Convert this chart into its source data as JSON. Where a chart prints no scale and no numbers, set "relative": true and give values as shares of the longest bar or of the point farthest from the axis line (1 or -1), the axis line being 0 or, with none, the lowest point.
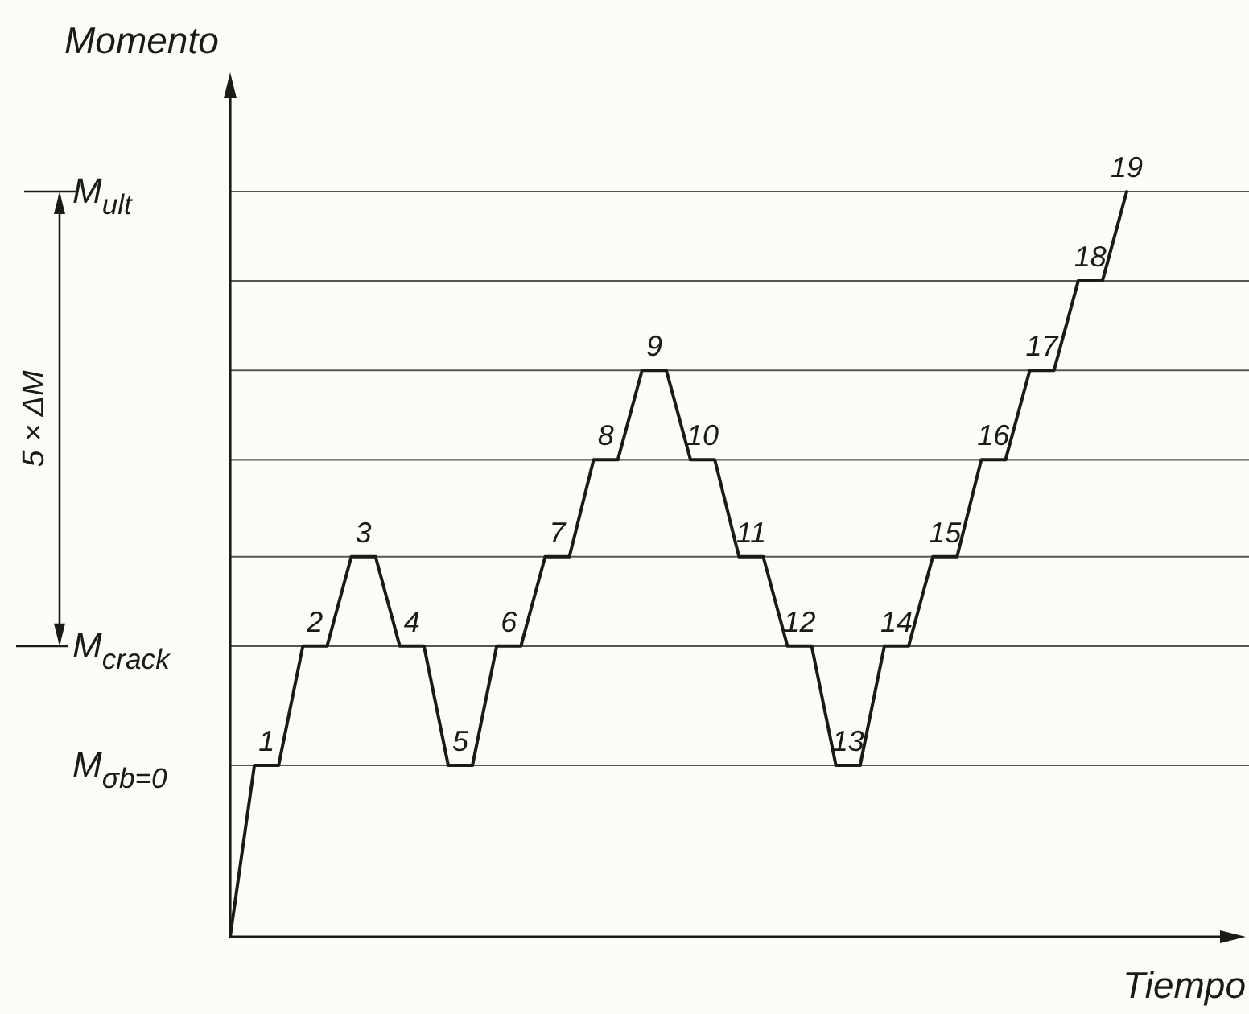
{
  "chart_data": {
    "type": "line",
    "xlabel": "Tiempo",
    "ylabel": "Momento",
    "relative": true,
    "categories": [
      null,
      null,
      null,
      null,
      null,
      null,
      null,
      null,
      null,
      null,
      null,
      null,
      null,
      null,
      null,
      null,
      null,
      null,
      null,
      null,
      null,
      null,
      null,
      null,
      null,
      null,
      null,
      null,
      null,
      null,
      null,
      null,
      null,
      null,
      null,
      null,
      null,
      null
    ],
    "series": [
      {
        "color": "#1a1a1a",
        "values": [
          0,
          0.23,
          0.23,
          0.39,
          0.39,
          0.51,
          0.51,
          0.39,
          0.39,
          0.23,
          0.23,
          0.39,
          0.39,
          0.51,
          0.51,
          0.64,
          0.64,
          0.76,
          0.76,
          0.64,
          0.64,
          0.51,
          0.51,
          0.39,
          0.39,
          0.23,
          0.23,
          0.39,
          0.39,
          0.51,
          0.51,
          0.64,
          0.64,
          0.76,
          0.76,
          0.88,
          0.88,
          1
        ]
      }
    ],
    "ref_lines": [
      {
        "axis": "y",
        "value": 0.23,
        "label": "M$_{σb=0}$"
      },
      {
        "axis": "y",
        "value": 0.39,
        "label": "M$_{crack}$"
      },
      {
        "axis": "y",
        "value": 0.51
      },
      {
        "axis": "y",
        "value": 0.64
      },
      {
        "axis": "y",
        "value": 0.76
      },
      {
        "axis": "y",
        "value": 0.88
      },
      {
        "axis": "y",
        "value": 1,
        "label": "M$_{ult}$"
      }
    ],
    "annotations": [
      "5 × ΔM",
      {
        "text": "1",
        "y": 0.23
      },
      {
        "text": "2",
        "y": 0.39
      },
      {
        "text": "3",
        "y": 0.51
      },
      {
        "text": "4",
        "y": 0.39
      },
      {
        "text": "5",
        "y": 0.23
      },
      {
        "text": "6",
        "y": 0.39
      },
      {
        "text": "7",
        "y": 0.51
      },
      {
        "text": "8",
        "y": 0.64
      },
      {
        "text": "9",
        "y": 0.76
      },
      {
        "text": "10",
        "y": 0.64
      },
      {
        "text": "11",
        "y": 0.51
      },
      {
        "text": "12",
        "y": 0.39
      },
      {
        "text": "13",
        "y": 0.23
      },
      {
        "text": "14",
        "y": 0.39
      },
      {
        "text": "15",
        "y": 0.51
      },
      {
        "text": "16",
        "y": 0.64
      },
      {
        "text": "17",
        "y": 0.76
      },
      {
        "text": "18",
        "y": 0.88
      },
      {
        "text": "19",
        "y": 1
      }
    ]
  }
}
